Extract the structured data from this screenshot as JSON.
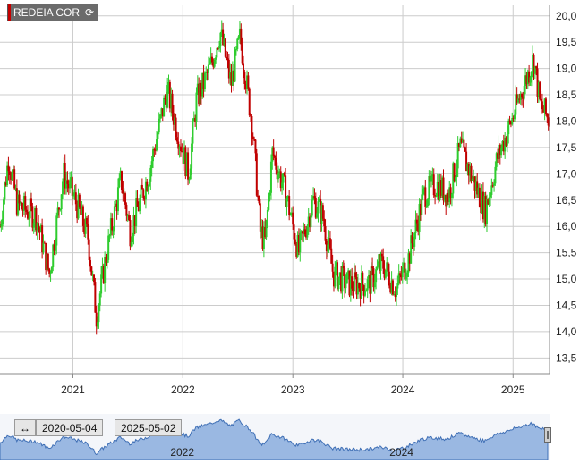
{
  "ticker": {
    "name": "REDEIA COR",
    "refresh_icon": "refresh-icon"
  },
  "navigator": {
    "start_date": "2020-05-04",
    "end_date": "2025-05-02",
    "toggle_icon": "left-right-arrows-icon",
    "labels": [
      "2022",
      "2024"
    ]
  },
  "colors": {
    "up": "#2ecc2e",
    "down": "#c00000",
    "grid": "#cccccc",
    "nav_fill": "#9ab8e2",
    "nav_line": "#3f6fb5"
  },
  "chart_data": {
    "type": "candlestick",
    "x_tick_labels": [
      "2021",
      "2022",
      "2023",
      "2024",
      "2025"
    ],
    "y_tick_labels": [
      "13,5",
      "14,0",
      "14,5",
      "15,0",
      "15,5",
      "16,0",
      "16,5",
      "17,0",
      "17,5",
      "18,0",
      "18,5",
      "19,0",
      "19,5",
      "20,0"
    ],
    "ylim": [
      13.2,
      20.2
    ],
    "x_range": [
      "2020-05-04",
      "2025-05-02"
    ],
    "grid": true,
    "close_path": [
      [
        "2020-05-04",
        16.0
      ],
      [
        "2020-06-01",
        17.3
      ],
      [
        "2020-07-01",
        16.4
      ],
      [
        "2020-09-01",
        16.2
      ],
      [
        "2020-10-15",
        15.1
      ],
      [
        "2020-12-01",
        17.0
      ],
      [
        "2021-01-15",
        16.4
      ],
      [
        "2021-02-20",
        15.8
      ],
      [
        "2021-03-20",
        14.3
      ],
      [
        "2021-04-20",
        15.4
      ],
      [
        "2021-06-10",
        16.9
      ],
      [
        "2021-07-10",
        15.9
      ],
      [
        "2021-09-10",
        17.0
      ],
      [
        "2021-11-10",
        18.6
      ],
      [
        "2021-12-10",
        17.9
      ],
      [
        "2022-01-20",
        17.0
      ],
      [
        "2022-02-15",
        18.4
      ],
      [
        "2022-04-01",
        19.0
      ],
      [
        "2022-05-05",
        19.7
      ],
      [
        "2022-06-10",
        18.7
      ],
      [
        "2022-07-10",
        19.6
      ],
      [
        "2022-08-20",
        17.9
      ],
      [
        "2022-09-15",
        15.9
      ],
      [
        "2022-10-01",
        15.7
      ],
      [
        "2022-10-25",
        17.4
      ],
      [
        "2022-12-10",
        16.6
      ],
      [
        "2023-01-20",
        15.5
      ],
      [
        "2023-03-10",
        16.5
      ],
      [
        "2023-04-10",
        16.2
      ],
      [
        "2023-05-15",
        15.1
      ],
      [
        "2023-07-10",
        14.9
      ],
      [
        "2023-09-10",
        14.9
      ],
      [
        "2023-10-25",
        15.3
      ],
      [
        "2023-12-10",
        14.8
      ],
      [
        "2024-01-20",
        15.4
      ],
      [
        "2024-03-10",
        16.6
      ],
      [
        "2024-04-20",
        16.8
      ],
      [
        "2024-06-01",
        16.6
      ],
      [
        "2024-07-10",
        17.5
      ],
      [
        "2024-08-20",
        16.9
      ],
      [
        "2024-10-01",
        16.3
      ],
      [
        "2024-11-10",
        17.3
      ],
      [
        "2024-12-20",
        17.9
      ],
      [
        "2025-02-01",
        18.6
      ],
      [
        "2025-03-10",
        19.2
      ],
      [
        "2025-04-01",
        18.3
      ],
      [
        "2025-05-02",
        18.0
      ]
    ]
  }
}
